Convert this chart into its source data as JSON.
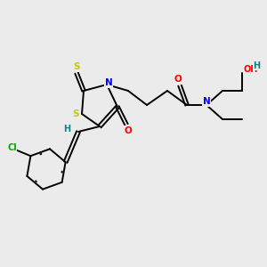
{
  "background_color": "#ebebeb",
  "figsize": [
    3.0,
    3.0
  ],
  "dpi": 100,
  "atom_colors": {
    "S": "#c8c800",
    "N": "#0000ff",
    "O": "#ff0000",
    "Cl": "#00aa00",
    "H": "#008888",
    "C": "#000000"
  },
  "bond_color": "#000000",
  "bond_width": 1.4,
  "font_size_atom": 7.5
}
